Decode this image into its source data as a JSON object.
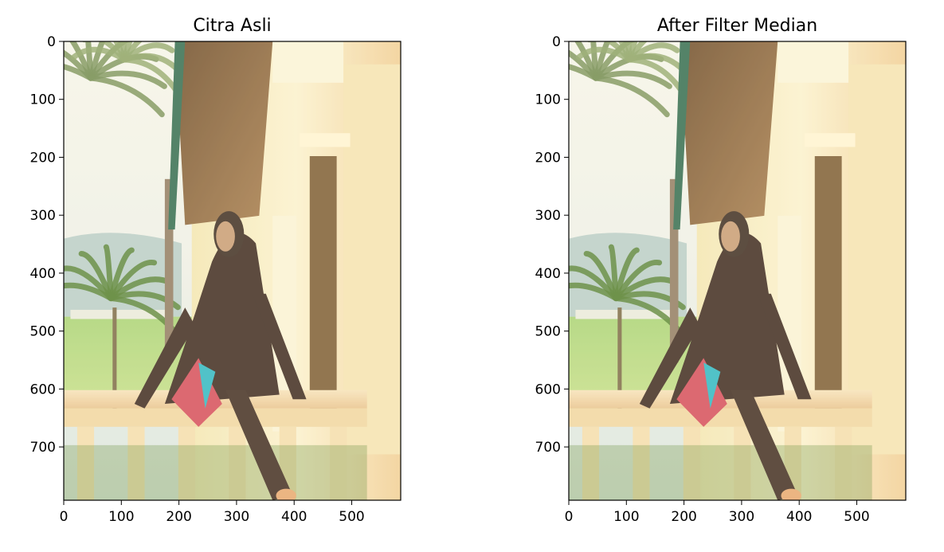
{
  "chart_data": [
    {
      "type": "image",
      "title": "Citra Asli",
      "xlim": [
        0,
        585
      ],
      "ylim": [
        792,
        0
      ],
      "xticks": [
        0,
        100,
        200,
        300,
        400,
        500
      ],
      "yticks": [
        0,
        100,
        200,
        300,
        400,
        500,
        600,
        700
      ],
      "xlabel": "",
      "ylabel": ""
    },
    {
      "type": "image",
      "title": "After Filter Median",
      "xlim": [
        0,
        585
      ],
      "ylim": [
        792,
        0
      ],
      "xticks": [
        0,
        100,
        200,
        300,
        400,
        500
      ],
      "yticks": [
        0,
        100,
        200,
        300,
        400,
        500,
        600,
        700
      ],
      "xlabel": "",
      "ylabel": ""
    }
  ]
}
